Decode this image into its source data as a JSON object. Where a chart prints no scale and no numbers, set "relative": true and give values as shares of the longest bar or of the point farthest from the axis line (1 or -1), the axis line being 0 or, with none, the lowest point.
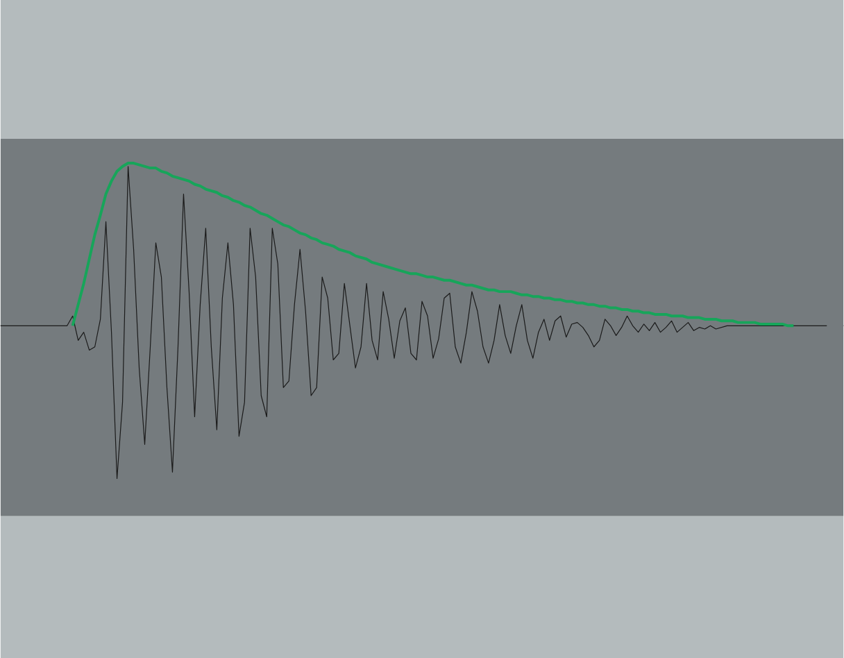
{
  "chart_data": {
    "type": "line",
    "relative": true,
    "categories": [
      null,
      null,
      null,
      null,
      null,
      null,
      null,
      null,
      null,
      null,
      null,
      null,
      null,
      null,
      null,
      null,
      null,
      null,
      null,
      null,
      null,
      null,
      null,
      null,
      null,
      null,
      null,
      null,
      null,
      null,
      null,
      null,
      null,
      null,
      null,
      null,
      null,
      null,
      null,
      null,
      null,
      null,
      null,
      null,
      null,
      null,
      null,
      null,
      null,
      null,
      null,
      null,
      null,
      null,
      null,
      null,
      null,
      null,
      null,
      null,
      null,
      null,
      null,
      null,
      null,
      null,
      null,
      null,
      null,
      null,
      null,
      null,
      null,
      null,
      null,
      null,
      null,
      null,
      null,
      null,
      null,
      null,
      null,
      null,
      null,
      null,
      null,
      null,
      null,
      null,
      null,
      null,
      null,
      null,
      null,
      null,
      null,
      null,
      null,
      null,
      null,
      null,
      null,
      null,
      null,
      null,
      null,
      null,
      null,
      null,
      null,
      null,
      null,
      null,
      null,
      null,
      null,
      null,
      null,
      null,
      null,
      null,
      null,
      null,
      null,
      null,
      null,
      null,
      null,
      null,
      null,
      null,
      null,
      null,
      null,
      null,
      null,
      null,
      null,
      null,
      null,
      null,
      null,
      null,
      null,
      null,
      null,
      null,
      null,
      null
    ],
    "series": [
      {
        "color": "#1a1a1a",
        "values": [
          0,
          0,
          0,
          0,
          0,
          0,
          0,
          0,
          0,
          0,
          0,
          0,
          0,
          0.06,
          -0.09,
          -0.04,
          -0.15,
          -0.13,
          0.04,
          0.64,
          -0.04,
          -0.94,
          -0.47,
          0.98,
          0.47,
          -0.26,
          -0.73,
          -0.13,
          0.51,
          0.3,
          -0.38,
          -0.9,
          -0.13,
          0.81,
          0.21,
          -0.56,
          0.13,
          0.6,
          -0.13,
          -0.64,
          0.17,
          0.51,
          0.13,
          -0.68,
          -0.47,
          0.6,
          0.3,
          -0.43,
          -0.56,
          0.6,
          0.38,
          -0.38,
          -0.34,
          0.13,
          0.47,
          0.09,
          -0.43,
          -0.38,
          0.3,
          0.17,
          -0.21,
          -0.17,
          0.26,
          0,
          -0.26,
          -0.13,
          0.26,
          -0.09,
          -0.21,
          0.21,
          0.04,
          -0.2,
          0.03,
          0.11,
          -0.17,
          -0.21,
          0.15,
          0.06,
          -0.2,
          -0.08,
          0.17,
          0.2,
          -0.13,
          -0.23,
          -0.04,
          0.21,
          0.09,
          -0.13,
          -0.23,
          -0.09,
          0.13,
          -0.06,
          -0.17,
          0,
          0.13,
          -0.09,
          -0.2,
          -0.04,
          0.04,
          -0.09,
          0.03,
          0.06,
          -0.07,
          0.01,
          0.02,
          -0.01,
          -0.06,
          -0.13,
          -0.09,
          0.04,
          0,
          -0.06,
          -0.01,
          0.06,
          0,
          -0.04,
          0.01,
          -0.03,
          0.02,
          -0.04,
          -0.01,
          0.03,
          -0.04,
          -0.01,
          0.02,
          -0.03,
          -0.01,
          -0.02,
          0,
          -0.02,
          -0.01,
          0,
          0,
          0,
          0,
          0,
          0,
          0,
          0,
          0,
          0,
          0,
          0,
          0,
          0,
          0,
          0,
          0,
          0,
          0
        ]
      },
      {
        "color": "#17a55a",
        "values": [
          null,
          null,
          null,
          null,
          null,
          null,
          null,
          null,
          null,
          null,
          null,
          null,
          null,
          0,
          0.13,
          0.26,
          0.41,
          0.56,
          0.68,
          0.81,
          0.89,
          0.95,
          0.98,
          1,
          1,
          0.99,
          0.98,
          0.97,
          0.97,
          0.95,
          0.94,
          0.92,
          0.91,
          0.9,
          0.89,
          0.87,
          0.86,
          0.84,
          0.83,
          0.82,
          0.8,
          0.79,
          0.77,
          0.76,
          0.74,
          0.73,
          0.71,
          0.69,
          0.68,
          0.66,
          0.64,
          0.62,
          0.61,
          0.59,
          0.57,
          0.56,
          0.54,
          0.53,
          0.51,
          0.5,
          0.49,
          0.47,
          0.46,
          0.45,
          0.43,
          0.42,
          0.41,
          0.39,
          0.38,
          0.37,
          0.36,
          0.35,
          0.34,
          0.33,
          0.32,
          0.32,
          0.31,
          0.3,
          0.3,
          0.29,
          0.28,
          0.28,
          0.27,
          0.26,
          0.25,
          0.25,
          0.24,
          0.23,
          0.22,
          0.22,
          0.21,
          0.21,
          0.21,
          0.2,
          0.19,
          0.19,
          0.18,
          0.18,
          0.17,
          0.17,
          0.16,
          0.16,
          0.15,
          0.15,
          0.14,
          0.14,
          0.13,
          0.13,
          0.12,
          0.12,
          0.11,
          0.11,
          0.1,
          0.1,
          0.09,
          0.09,
          0.08,
          0.08,
          0.07,
          0.07,
          0.07,
          0.06,
          0.06,
          0.06,
          0.05,
          0.05,
          0.05,
          0.04,
          0.04,
          0.04,
          0.03,
          0.03,
          0.03,
          0.02,
          0.02,
          0.02,
          0.02,
          0.01,
          0.01,
          0.01,
          0.01,
          0.01,
          0,
          0,
          null,
          null,
          null,
          null,
          null,
          null
        ]
      }
    ],
    "bands": [
      {
        "axis": "y",
        "from": -1.17,
        "to": 1.15,
        "color": "#757b7e"
      }
    ]
  }
}
